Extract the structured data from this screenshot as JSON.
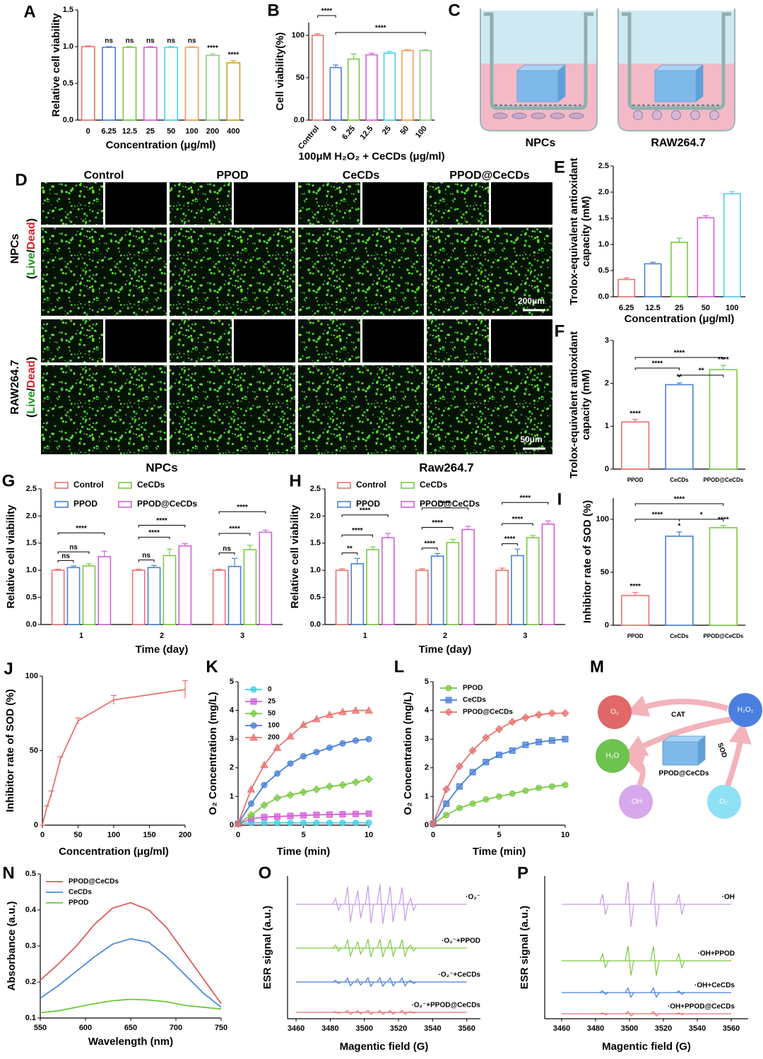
{
  "chart_data": [
    {
      "panel": "A",
      "type": "bar",
      "ylabel": "Relative cell viability",
      "xlabel": "Concentration (μg/ml)",
      "categories": [
        "0",
        "6.25",
        "12.5",
        "25",
        "50",
        "100",
        "200",
        "400"
      ],
      "values": [
        1.0,
        0.99,
        0.99,
        0.99,
        0.99,
        0.99,
        0.88,
        0.78
      ],
      "errors": [
        0.01,
        0.01,
        0.01,
        0.01,
        0.01,
        0.01,
        0.02,
        0.03
      ],
      "colors": [
        "#e8726f",
        "#4a7fd6",
        "#7ac943",
        "#d35fd8",
        "#4ad1e0",
        "#f0a050",
        "#8fce80",
        "#c9a227"
      ],
      "significance": [
        null,
        "ns",
        "ns",
        "ns",
        "ns",
        "ns",
        "****",
        "****"
      ],
      "ylim": [
        0,
        1.5
      ],
      "yticks": [
        {
          "value": 0,
          "label": "0.0"
        },
        {
          "value": 0.5,
          "label": "0.5"
        },
        {
          "value": 1,
          "label": "1.0"
        },
        {
          "value": 1.5,
          "label": "1.5"
        }
      ]
    },
    {
      "panel": "B",
      "type": "bar",
      "ylabel": "Cell viability(%)",
      "xlabel": "100μM H₂O₂ + CeCDs (μg/ml)",
      "categories": [
        "Control",
        "0",
        "6.25",
        "12.5",
        "25",
        "50",
        "100"
      ],
      "values": [
        100,
        62,
        72,
        77,
        79,
        82,
        82
      ],
      "errors": [
        2,
        3,
        6,
        2,
        2,
        1,
        1
      ],
      "colors": [
        "#e8726f",
        "#4a7fd6",
        "#7ac943",
        "#d35fd8",
        "#4ad1e0",
        "#f0a050",
        "#8fce80"
      ],
      "significance": [
        "****",
        "****"
      ],
      "rotate_labels": true,
      "ylim": [
        0,
        115
      ],
      "yticks": [
        {
          "value": 0,
          "label": "0.0"
        },
        50,
        100
      ]
    },
    {
      "panel": "C",
      "type": "transwell",
      "labels": [
        "NPCs",
        "RAW264.7"
      ]
    },
    {
      "panel": "D",
      "type": "micrograph",
      "columns": [
        "Control",
        "PPOD",
        "CeCDs",
        "PPOD@CeCDs"
      ],
      "rows": [
        {
          "label": "NPCs",
          "stain": [
            "(",
            "Live",
            "/",
            "Dead",
            ")"
          ],
          "scale_bar": "200μm"
        },
        {
          "label": "RAW264.7",
          "stain": [
            "(",
            "Live",
            "/",
            "Dead",
            ")"
          ],
          "scale_bar": "50μm"
        }
      ],
      "stain_colors": [
        "#000000",
        "#1a9a1a",
        "#000000",
        "#e0202a",
        "#000000"
      ]
    },
    {
      "panel": "E",
      "type": "bar",
      "ylabel": [
        "Trolox-equivalent antioxidant",
        "capacity (mM)"
      ],
      "xlabel": "Concentration (μg/ml)",
      "categories": [
        "6.25",
        "12.5",
        "25",
        "50",
        "100"
      ],
      "values": [
        0.33,
        0.63,
        1.04,
        1.51,
        1.97
      ],
      "errors": [
        0.03,
        0.03,
        0.08,
        0.04,
        0.04
      ],
      "colors": [
        "#e8726f",
        "#4a7fd6",
        "#7ac943",
        "#d35fd8",
        "#4ad1e0"
      ],
      "ylim": [
        0,
        2.5
      ],
      "yticks": [
        {
          "value": 0,
          "label": "0.0"
        },
        {
          "value": 0.5,
          "label": "0.5"
        },
        {
          "value": 1,
          "label": "1.0"
        },
        {
          "value": 1.5,
          "label": "1.5"
        },
        {
          "value": 2,
          "label": "2.0"
        },
        {
          "value": 2.5,
          "label": "2.5"
        }
      ]
    },
    {
      "panel": "F",
      "type": "bar",
      "ylabel": [
        "Trolox-equivalent antioxidant",
        "capacity (mM)"
      ],
      "categories": [
        "PPOD",
        "CeCDs",
        "PPOD@CeCDs"
      ],
      "values": [
        1.1,
        1.97,
        2.32
      ],
      "errors": [
        0.06,
        0.04,
        0.1
      ],
      "colors": [
        "#e8726f",
        "#4a7fd6",
        "#7ac943"
      ],
      "significance": [
        "****",
        "**",
        "****"
      ],
      "ylim": [
        0,
        3
      ],
      "yticks": [
        0,
        1,
        2,
        3
      ]
    },
    {
      "panel": "G",
      "type": "bar",
      "title": "NPCs",
      "ylabel": "Relative cell viability",
      "xlabel": "Time (day)",
      "categories": [
        "1",
        "2",
        "3"
      ],
      "series": [
        {
          "name": "Control",
          "color": "#e8726f",
          "values": [
            1.0,
            1.0,
            1.0
          ],
          "errors": [
            0.02,
            0.02,
            0.02
          ]
        },
        {
          "name": "PPOD",
          "color": "#4a7fd6",
          "values": [
            1.05,
            1.05,
            1.07
          ],
          "errors": [
            0.03,
            0.04,
            0.15
          ]
        },
        {
          "name": "CeCDs",
          "color": "#7ac943",
          "values": [
            1.08,
            1.27,
            1.38
          ],
          "errors": [
            0.04,
            0.12,
            0.08
          ]
        },
        {
          "name": "PPOD@CeCDs",
          "color": "#d35fd8",
          "values": [
            1.25,
            1.45,
            1.7
          ],
          "errors": [
            0.1,
            0.04,
            0.04
          ]
        }
      ],
      "comparisons": [
        [
          "ns",
          "ns",
          "****"
        ],
        [
          "ns",
          "****",
          "****"
        ],
        [
          "ns",
          "****",
          "****"
        ]
      ],
      "ylim": [
        0,
        2.5
      ],
      "yticks": [
        {
          "value": 0,
          "label": "0.0"
        },
        {
          "value": 0.5,
          "label": "0.5"
        },
        {
          "value": 1,
          "label": "1.0"
        },
        {
          "value": 1.5,
          "label": "1.5"
        },
        {
          "value": 2,
          "label": "2.0"
        },
        {
          "value": 2.5,
          "label": "2.5"
        }
      ]
    },
    {
      "panel": "H",
      "type": "bar",
      "title": "Raw264.7",
      "ylabel": "Relative cell viability",
      "xlabel": "Time (day)",
      "categories": [
        "1",
        "2",
        "3"
      ],
      "series": [
        {
          "name": "Control",
          "color": "#e8726f",
          "values": [
            1.0,
            1.0,
            1.0
          ],
          "errors": [
            0.03,
            0.03,
            0.04
          ]
        },
        {
          "name": "PPOD",
          "color": "#4a7fd6",
          "values": [
            1.12,
            1.26,
            1.27
          ],
          "errors": [
            0.1,
            0.05,
            0.12
          ]
        },
        {
          "name": "CeCDs",
          "color": "#7ac943",
          "values": [
            1.38,
            1.51,
            1.6
          ],
          "errors": [
            0.05,
            0.06,
            0.04
          ]
        },
        {
          "name": "PPOD@CeCDs",
          "color": "#d35fd8",
          "values": [
            1.6,
            1.75,
            1.85
          ],
          "errors": [
            0.08,
            0.06,
            0.06
          ]
        }
      ],
      "comparisons": [
        [
          "**",
          "****",
          "****"
        ],
        [
          "****",
          "****",
          "****"
        ],
        [
          "****",
          "****",
          "****"
        ]
      ],
      "ylim": [
        0,
        2.5
      ],
      "yticks": [
        {
          "value": 0,
          "label": "0.0"
        },
        {
          "value": 0.5,
          "label": "0.5"
        },
        {
          "value": 1,
          "label": "1.0"
        },
        {
          "value": 1.5,
          "label": "1.5"
        },
        {
          "value": 2,
          "label": "2.0"
        },
        {
          "value": 2.5,
          "label": "2.5"
        }
      ]
    },
    {
      "panel": "I",
      "type": "bar",
      "ylabel": "Inhibitor rate of SOD (%)",
      "categories": [
        "PPOD",
        "CeCDs",
        "PPOD@CeCDs"
      ],
      "values": [
        28,
        84,
        92
      ],
      "errors": [
        3,
        4,
        2
      ],
      "colors": [
        "#e8726f",
        "#4a7fd6",
        "#7ac943"
      ],
      "significance": [
        "****",
        "*",
        "****"
      ],
      "ylim": [
        0,
        120
      ],
      "yticks": [
        0,
        50,
        100
      ]
    },
    {
      "panel": "J",
      "type": "line",
      "ylabel": "Inhibitor rate of SOD (%)",
      "xlabel": "Concentration (μg/ml)",
      "x": [
        0,
        6.25,
        12.5,
        25,
        50,
        100,
        200
      ],
      "series": [
        {
          "color": "#e8726f",
          "values": [
            0,
            12,
            21,
            44,
            70,
            84,
            91
          ],
          "errors": [
            0,
            1,
            2,
            2,
            2,
            3,
            6
          ]
        }
      ],
      "xlim": [
        0,
        200
      ],
      "xticks": [
        0,
        50,
        100,
        150,
        200
      ],
      "ylim": [
        0,
        100
      ],
      "yticks": [
        0,
        50,
        100
      ]
    },
    {
      "panel": "K",
      "type": "line",
      "ylabel": "O₂ Concentration (mg/L)",
      "xlabel": "Time (min)",
      "x": [
        0,
        1,
        2,
        3,
        4,
        5,
        6,
        7,
        8,
        9,
        10
      ],
      "series": [
        {
          "name": "0",
          "color": "#3ccfe6",
          "marker": "circle",
          "values": [
            0.05,
            0.08,
            0.08,
            0.08,
            0.08,
            0.08,
            0.08,
            0.08,
            0.08,
            0.08,
            0.08
          ]
        },
        {
          "name": "25",
          "color": "#d35fd8",
          "marker": "square",
          "values": [
            0.05,
            0.22,
            0.28,
            0.3,
            0.32,
            0.34,
            0.36,
            0.37,
            0.38,
            0.39,
            0.4
          ]
        },
        {
          "name": "50",
          "color": "#7ac943",
          "marker": "diamond",
          "values": [
            0.05,
            0.35,
            0.7,
            0.95,
            1.05,
            1.15,
            1.25,
            1.35,
            1.4,
            1.5,
            1.6
          ]
        },
        {
          "name": "100",
          "color": "#4a7fd6",
          "marker": "circle",
          "values": [
            0.05,
            0.75,
            1.4,
            1.8,
            2.15,
            2.4,
            2.55,
            2.7,
            2.85,
            2.95,
            3.0
          ]
        },
        {
          "name": "200",
          "color": "#e8726f",
          "marker": "triangle",
          "values": [
            0.05,
            1.25,
            2.1,
            2.7,
            3.1,
            3.5,
            3.7,
            3.85,
            3.95,
            4.0,
            4.0
          ]
        }
      ],
      "xlim": [
        0,
        10
      ],
      "xticks": [
        0,
        5,
        10
      ],
      "ylim": [
        0,
        5
      ],
      "yticks": [
        0,
        1,
        2,
        3,
        4,
        5
      ]
    },
    {
      "panel": "L",
      "type": "line",
      "ylabel": "O₂ Concentration (mg/L)",
      "xlabel": "Time (min)",
      "x": [
        0,
        1,
        2,
        3,
        4,
        5,
        6,
        7,
        8,
        9,
        10
      ],
      "series": [
        {
          "name": "PPOD",
          "color": "#7ac943",
          "marker": "circle",
          "values": [
            0.05,
            0.35,
            0.6,
            0.75,
            0.9,
            1.0,
            1.1,
            1.2,
            1.3,
            1.35,
            1.4
          ]
        },
        {
          "name": "CeCDs",
          "color": "#4a7fd6",
          "marker": "square",
          "values": [
            0.05,
            0.75,
            1.35,
            1.85,
            2.2,
            2.45,
            2.6,
            2.8,
            2.9,
            2.95,
            3.0
          ]
        },
        {
          "name": "PPOD@CeCDs",
          "color": "#e8726f",
          "marker": "diamond",
          "values": [
            0.05,
            1.25,
            2.05,
            2.6,
            3.05,
            3.35,
            3.6,
            3.75,
            3.85,
            3.9,
            3.9
          ]
        }
      ],
      "xlim": [
        0,
        10
      ],
      "xticks": [
        0,
        5,
        10
      ],
      "ylim": [
        0,
        5
      ],
      "yticks": [
        0,
        1,
        2,
        3,
        4,
        5
      ]
    },
    {
      "panel": "M",
      "type": "scheme",
      "nodes": [
        "O₂",
        "H₂O₂",
        "H₂O",
        "·OH",
        "·O₂⁻"
      ],
      "labels": [
        "CAT",
        "SOD",
        "PPOD@CeCDs"
      ]
    },
    {
      "panel": "N",
      "type": "line",
      "ylabel": "Absorbance (a.u.)",
      "xlabel": "Wavelength (nm)",
      "x": [
        550,
        570,
        590,
        610,
        630,
        650,
        670,
        690,
        710,
        730,
        750
      ],
      "series": [
        {
          "name": "PPOD@CeCDs",
          "color": "#e05a5a",
          "values": [
            0.205,
            0.25,
            0.3,
            0.36,
            0.405,
            0.42,
            0.4,
            0.35,
            0.28,
            0.21,
            0.14
          ]
        },
        {
          "name": "CeCDs",
          "color": "#4a8ae0",
          "values": [
            0.155,
            0.19,
            0.23,
            0.27,
            0.305,
            0.32,
            0.31,
            0.27,
            0.22,
            0.17,
            0.13
          ]
        },
        {
          "name": "PPOD",
          "color": "#6cc93c",
          "values": [
            0.115,
            0.12,
            0.13,
            0.14,
            0.148,
            0.152,
            0.15,
            0.145,
            0.135,
            0.13,
            0.125
          ]
        }
      ],
      "xlim": [
        550,
        750
      ],
      "xticks": [
        550,
        600,
        650,
        700,
        750
      ],
      "ylim": [
        0.1,
        0.5
      ],
      "yticks": [
        0.1,
        0.2,
        0.3,
        0.4,
        0.5
      ]
    },
    {
      "panel": "O",
      "type": "esr",
      "ylabel": "ESR signal (a.u.)",
      "xlabel": "Magentic field (G)",
      "xlim": [
        3455,
        3568
      ],
      "xticks": [
        3460,
        3480,
        3500,
        3520,
        3540,
        3560
      ],
      "series": [
        {
          "name": "·O₂⁻",
          "color": "#c89ae0",
          "peaks_x": [
            3484,
            3491,
            3497,
            3503,
            3510,
            3516,
            3523,
            3528
          ],
          "amplitudes": [
            0.3,
            0.9,
            0.7,
            0.95,
            1.0,
            0.9,
            0.85,
            0.3
          ]
        },
        {
          "name": "·O₂⁻+PPOD",
          "color": "#7ac943",
          "peaks_x": [
            3484,
            3491,
            3497,
            3503,
            3510,
            3516,
            3523,
            3528
          ],
          "amplitudes": [
            0.15,
            0.4,
            0.3,
            0.45,
            0.45,
            0.4,
            0.4,
            0.15
          ]
        },
        {
          "name": "·O₂⁻+CeCDs",
          "color": "#4a7fd6",
          "peaks_x": [
            3484,
            3491,
            3497,
            3503,
            3510,
            3516,
            3523,
            3528
          ],
          "amplitudes": [
            0.08,
            0.2,
            0.15,
            0.22,
            0.22,
            0.2,
            0.2,
            0.08
          ]
        },
        {
          "name": "·O₂⁻+PPOD@CeCDs",
          "color": "#e8726f",
          "peaks_x": [
            3484,
            3491,
            3497,
            3503,
            3510,
            3516,
            3523,
            3528
          ],
          "amplitudes": [
            0.04,
            0.1,
            0.08,
            0.1,
            0.1,
            0.1,
            0.1,
            0.04
          ]
        }
      ]
    },
    {
      "panel": "P",
      "type": "esr",
      "ylabel": "ESR signal (a.u.)",
      "xlabel": "Magentic field (G)",
      "xlim": [
        3450,
        3570
      ],
      "xticks": [
        3460,
        3480,
        3500,
        3520,
        3540,
        3560
      ],
      "series": [
        {
          "name": "·OH",
          "color": "#c89ae0",
          "peaks_x": [
            3485,
            3500,
            3515,
            3530
          ],
          "amplitudes": [
            0.45,
            1.0,
            1.0,
            0.45
          ]
        },
        {
          "name": "·OH+PPOD",
          "color": "#7ac943",
          "peaks_x": [
            3485,
            3500,
            3515,
            3530
          ],
          "amplitudes": [
            0.3,
            0.65,
            0.65,
            0.3
          ]
        },
        {
          "name": "·OH+CeCDs",
          "color": "#4a7fd6",
          "peaks_x": [
            3485,
            3500,
            3515,
            3530
          ],
          "amplitudes": [
            0.08,
            0.2,
            0.2,
            0.08
          ]
        },
        {
          "name": "·OH+PPOD@CeCDs",
          "color": "#e8726f",
          "peaks_x": [
            3485,
            3500,
            3515,
            3530
          ],
          "amplitudes": [
            0.04,
            0.1,
            0.1,
            0.04
          ]
        }
      ]
    }
  ]
}
